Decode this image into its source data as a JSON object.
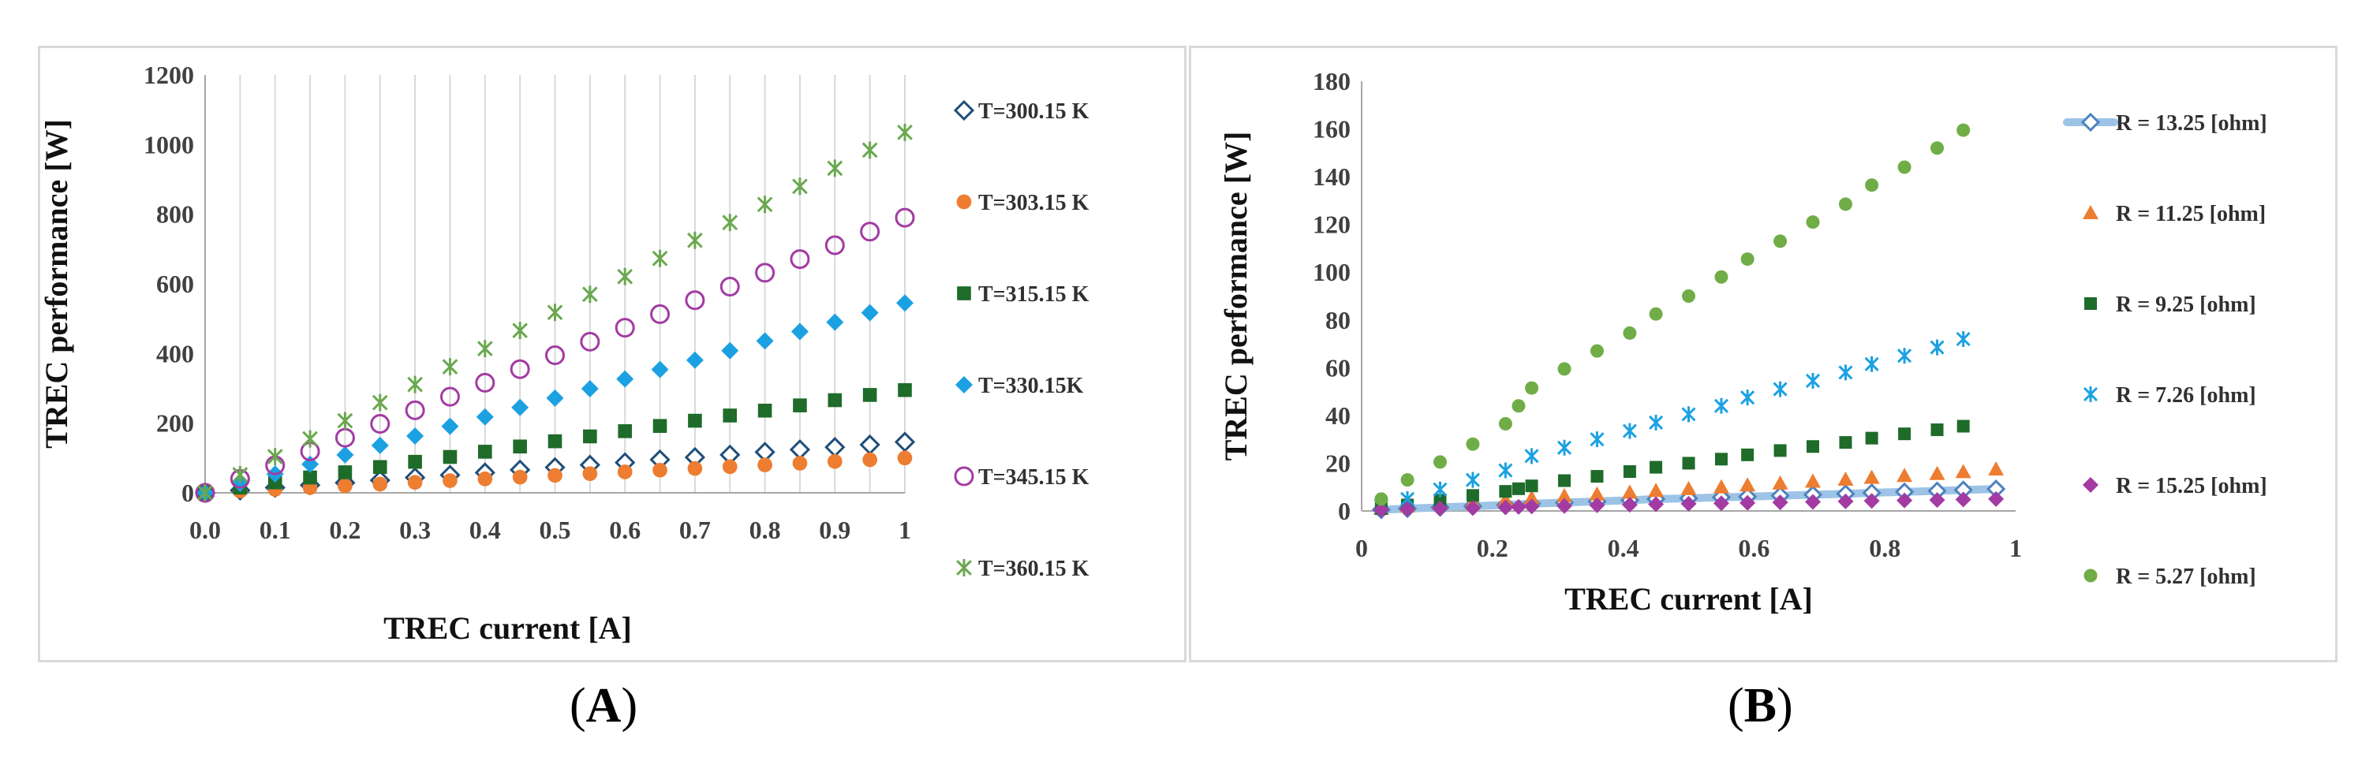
{
  "captions": {
    "a_open": "(",
    "a_letter": "A",
    "a_close": ")",
    "b_open": "(",
    "b_letter": "B",
    "b_close": ")"
  },
  "chart_data": [
    {
      "type": "scatter",
      "title": "",
      "xlabel": "TREC current [A]",
      "ylabel": "TREC performance [W]",
      "xlim": [
        0,
        1
      ],
      "ylim": [
        0,
        1200
      ],
      "xticks": [
        "0.0",
        "0.1",
        "0.2",
        "0.3",
        "0.4",
        "0.5",
        "0.6",
        "0.7",
        "0.8",
        "0.9",
        "1"
      ],
      "yticks": [
        "0",
        "200",
        "400",
        "600",
        "800",
        "1000",
        "1200"
      ],
      "grid": "vertical",
      "legend": "right",
      "x": [
        0,
        0.05,
        0.1,
        0.15,
        0.2,
        0.25,
        0.3,
        0.35,
        0.4,
        0.45,
        0.5,
        0.55,
        0.6,
        0.65,
        0.7,
        0.75,
        0.8,
        0.85,
        0.9,
        0.95,
        1
      ],
      "series": [
        {
          "name": "T=300.15 K",
          "marker": "diamond-open",
          "color": "#1f4e79",
          "values": [
            0,
            7,
            15,
            22,
            29,
            36,
            44,
            51,
            58,
            66,
            73,
            80,
            87,
            95,
            102,
            109,
            117,
            124,
            131,
            138,
            146
          ]
        },
        {
          "name": "T=303.15 K",
          "marker": "circle",
          "color": "#ed7d31",
          "values": [
            0,
            5,
            10,
            15,
            20,
            25,
            30,
            35,
            40,
            45,
            50,
            55,
            60,
            65,
            70,
            75,
            80,
            85,
            90,
            95,
            100
          ]
        },
        {
          "name": "T=315.15 K",
          "marker": "square",
          "color": "#1e6b2a",
          "values": [
            0,
            15,
            30,
            44,
            59,
            74,
            89,
            103,
            118,
            133,
            148,
            162,
            177,
            192,
            207,
            222,
            236,
            251,
            266,
            281,
            295
          ]
        },
        {
          "name": "T=330.15K",
          "marker": "diamond",
          "color": "#1ba1e2",
          "values": [
            0,
            27,
            54,
            82,
            109,
            136,
            163,
            191,
            218,
            245,
            272,
            299,
            327,
            354,
            381,
            408,
            436,
            463,
            490,
            517,
            545
          ]
        },
        {
          "name": "T=345.15 K",
          "marker": "circle-open",
          "color": "#a33ba3",
          "values": [
            0,
            40,
            79,
            119,
            158,
            198,
            237,
            276,
            316,
            355,
            395,
            434,
            474,
            513,
            553,
            592,
            632,
            671,
            711,
            750,
            790
          ]
        },
        {
          "name": "T=360.15 K",
          "marker": "star",
          "color": "#6aa84f",
          "values": [
            0,
            52,
            104,
            155,
            207,
            259,
            311,
            362,
            414,
            466,
            518,
            570,
            621,
            673,
            725,
            776,
            828,
            880,
            932,
            984,
            1035
          ]
        }
      ]
    },
    {
      "type": "scatter",
      "title": "",
      "xlabel": "TREC current [A]",
      "ylabel": "TREC performance [W]",
      "xlim": [
        0,
        1
      ],
      "ylim": [
        0,
        180
      ],
      "xticks": [
        "0",
        "0.2",
        "0.4",
        "0.6",
        "0.8",
        "1"
      ],
      "yticks": [
        "0",
        "20",
        "40",
        "60",
        "80",
        "100",
        "120",
        "140",
        "160",
        "180"
      ],
      "grid": "none",
      "legend": "right",
      "series": [
        {
          "name": "R = 13.25 [ohm]",
          "marker": "diamond-open-line",
          "color": "#4e81bd",
          "line_color": "#9dc3e6",
          "x": [
            0.03,
            0.07,
            0.12,
            0.17,
            0.22,
            0.26,
            0.31,
            0.36,
            0.41,
            0.45,
            0.5,
            0.55,
            0.59,
            0.64,
            0.69,
            0.74,
            0.78,
            0.83,
            0.88,
            0.92,
            0.97
          ],
          "values": [
            0.5,
            1,
            1.5,
            2,
            2.5,
            3,
            3.5,
            4,
            4.5,
            5,
            5.3,
            5.7,
            6,
            6.4,
            6.8,
            7.2,
            7.6,
            8,
            8.4,
            8.8,
            9.2
          ]
        },
        {
          "name": "R = 11.25 [ohm]",
          "marker": "triangle",
          "color": "#ed7d31",
          "x": [
            0.03,
            0.07,
            0.12,
            0.17,
            0.22,
            0.26,
            0.31,
            0.36,
            0.41,
            0.45,
            0.5,
            0.55,
            0.59,
            0.64,
            0.69,
            0.74,
            0.78,
            0.83,
            0.88,
            0.92,
            0.97
          ],
          "values": [
            1,
            2,
            3,
            3.8,
            4.7,
            5.5,
            6.3,
            7,
            7.8,
            8.5,
            9.3,
            10,
            10.8,
            11.6,
            12.4,
            13.2,
            14,
            14.8,
            15.6,
            16.4,
            17.5
          ]
        },
        {
          "name": "R = 9.25 [ohm]",
          "marker": "square",
          "color": "#1e6b2a",
          "x": [
            0.03,
            0.07,
            0.12,
            0.17,
            0.22,
            0.24,
            0.26,
            0.31,
            0.36,
            0.41,
            0.45,
            0.5,
            0.55,
            0.59,
            0.64,
            0.69,
            0.74,
            0.78,
            0.83,
            0.88,
            0.92
          ],
          "values": [
            1,
            2.5,
            4.5,
            6.5,
            8.2,
            9.3,
            10.5,
            12.7,
            14.5,
            16.5,
            18.3,
            20,
            21.7,
            23.5,
            25.3,
            27,
            28.7,
            30.5,
            32.3,
            34,
            35.5
          ]
        },
        {
          "name": "R = 7.26 [ohm]",
          "marker": "star",
          "color": "#1ba1e2",
          "x": [
            0.03,
            0.07,
            0.12,
            0.17,
            0.22,
            0.26,
            0.31,
            0.36,
            0.41,
            0.45,
            0.5,
            0.55,
            0.59,
            0.64,
            0.69,
            0.74,
            0.78,
            0.83,
            0.88,
            0.92
          ],
          "values": [
            2,
            5,
            9,
            13,
            17,
            23,
            26.5,
            30,
            33.5,
            37,
            40.5,
            44,
            47.5,
            51,
            54.5,
            58,
            61.5,
            65,
            68.5,
            72
          ]
        },
        {
          "name": "R = 15.25 [ohm]",
          "marker": "diamond",
          "color": "#a33ba3",
          "x": [
            0.03,
            0.07,
            0.12,
            0.17,
            0.22,
            0.24,
            0.26,
            0.31,
            0.36,
            0.41,
            0.45,
            0.5,
            0.55,
            0.59,
            0.64,
            0.69,
            0.74,
            0.78,
            0.83,
            0.88,
            0.92,
            0.97
          ],
          "values": [
            0.5,
            0.8,
            1,
            1.2,
            1.5,
            1.7,
            1.9,
            2.1,
            2.4,
            2.6,
            2.8,
            3,
            3.2,
            3.4,
            3.6,
            3.8,
            4,
            4.2,
            4.4,
            4.6,
            4.8,
            5
          ]
        },
        {
          "name": "R = 5.27 [ohm]",
          "marker": "circle",
          "color": "#70ad47",
          "x": [
            0.03,
            0.07,
            0.12,
            0.17,
            0.22,
            0.24,
            0.26,
            0.31,
            0.36,
            0.41,
            0.45,
            0.5,
            0.55,
            0.59,
            0.64,
            0.69,
            0.74,
            0.78,
            0.83,
            0.88,
            0.92
          ],
          "values": [
            5,
            13,
            20.5,
            28,
            36.5,
            44,
            51.5,
            59.5,
            67,
            74.5,
            82.5,
            90,
            98,
            105.5,
            113,
            121,
            128.5,
            136.5,
            144,
            152,
            159.5
          ]
        }
      ]
    }
  ]
}
